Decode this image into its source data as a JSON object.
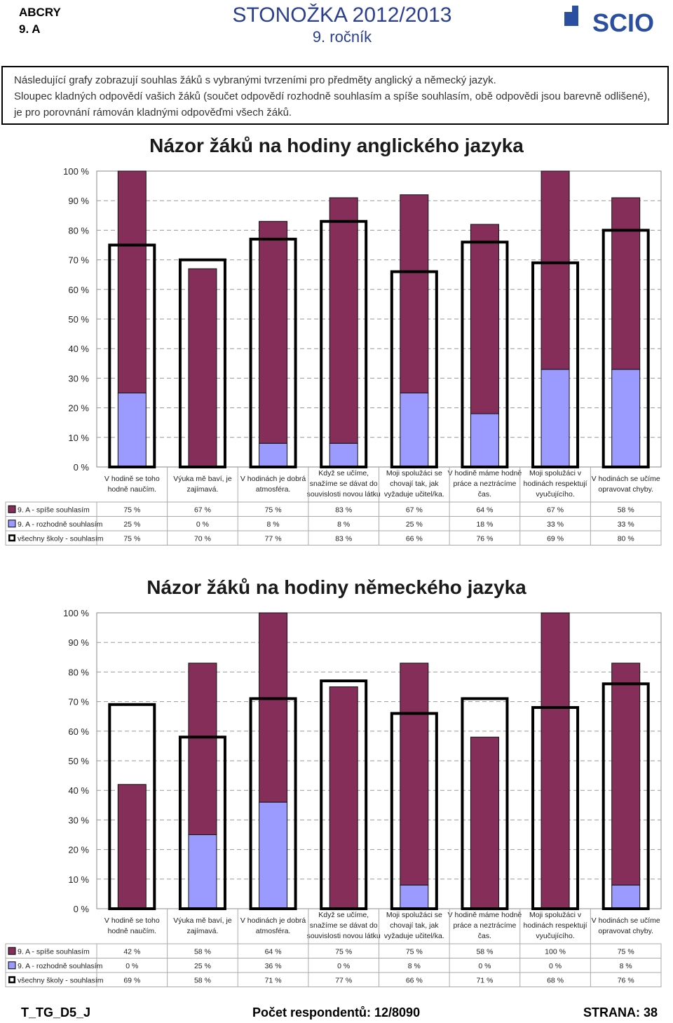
{
  "header": {
    "school": "ABCRY",
    "class": "9. A",
    "title": "STONOŽKA 2012/2013",
    "grade": "9. ročník",
    "logo_text": "SCIO"
  },
  "intro": {
    "line1": "Následující grafy zobrazují souhlas žáků s vybranými tvrzeními pro předměty anglický a německý jazyk.",
    "line2": "Sloupec kladných odpovědí vašich žáků (součet odpovědí rozhodně souhlasím a spíše souhlasím, obě odpovědi jsou barevně odlišené), je pro porovnání rámován kladnými odpověďmi všech žáků."
  },
  "colors": {
    "spise": "#862e5a",
    "rozhodne": "#9a9aff",
    "frame": "#000000"
  },
  "chart_data": [
    {
      "type": "bar",
      "title": "Názor žáků na hodiny anglického jazyka",
      "ylim": [
        0,
        100
      ],
      "yticks": [
        "0 %",
        "10 %",
        "20 %",
        "30 %",
        "40 %",
        "50 %",
        "60 %",
        "70 %",
        "80 %",
        "90 %",
        "100 %"
      ],
      "categories": [
        [
          "V hodině se toho",
          "hodně naučím."
        ],
        [
          "Výuka mě baví, je",
          "zajímavá."
        ],
        [
          "V hodinách je dobrá",
          "atmosféra."
        ],
        [
          "Když se učíme,",
          "snažíme se dávat do",
          "souvislosti novou látku"
        ],
        [
          "Moji spolužáci se",
          "chovají tak, jak",
          "vyžaduje učitel/ka."
        ],
        [
          "V hodině máme hodně",
          "práce a neztrácíme",
          "čas."
        ],
        [
          "Moji spolužáci v",
          "hodinách respektují",
          "vyučujícího."
        ],
        [
          "V hodinách se učíme",
          "opravovat chyby."
        ]
      ],
      "series": [
        {
          "name": "9. A - spíše souhlasím",
          "values": [
            75,
            67,
            75,
            83,
            67,
            64,
            67,
            58
          ],
          "labels": [
            "75 %",
            "67 %",
            "75 %",
            "83 %",
            "67 %",
            "64 %",
            "67 %",
            "58 %"
          ]
        },
        {
          "name": "9. A - rozhodně souhlasím",
          "values": [
            25,
            0,
            8,
            8,
            25,
            18,
            33,
            33
          ],
          "labels": [
            "25 %",
            "0 %",
            "8 %",
            "8 %",
            "25 %",
            "18 %",
            "33 %",
            "33 %"
          ]
        },
        {
          "name": "všechny školy - souhlasím",
          "values": [
            75,
            70,
            77,
            83,
            66,
            76,
            69,
            80
          ],
          "labels": [
            "75 %",
            "70 %",
            "77 %",
            "83 %",
            "66 %",
            "76 %",
            "69 %",
            "80 %"
          ]
        }
      ]
    },
    {
      "type": "bar",
      "title": "Názor žáků na hodiny německého jazyka",
      "ylim": [
        0,
        100
      ],
      "yticks": [
        "0 %",
        "10 %",
        "20 %",
        "30 %",
        "40 %",
        "50 %",
        "60 %",
        "70 %",
        "80 %",
        "90 %",
        "100 %"
      ],
      "categories": [
        [
          "V hodině se toho",
          "hodně naučím."
        ],
        [
          "Výuka mě baví, je",
          "zajímavá."
        ],
        [
          "V hodinách je dobrá",
          "atmosféra."
        ],
        [
          "Když se učíme,",
          "snažíme se dávat do",
          "souvislosti novou látku"
        ],
        [
          "Moji spolužáci se",
          "chovají tak, jak",
          "vyžaduje učitel/ka."
        ],
        [
          "V hodině máme hodně",
          "práce a neztrácíme",
          "čas."
        ],
        [
          "Moji spolužáci v",
          "hodinách respektují",
          "vyučujícího."
        ],
        [
          "V hodinách se učíme",
          "opravovat chyby."
        ]
      ],
      "series": [
        {
          "name": "9. A - spíše souhlasím",
          "values": [
            42,
            58,
            64,
            75,
            75,
            58,
            100,
            75
          ],
          "labels": [
            "42 %",
            "58 %",
            "64 %",
            "75 %",
            "75 %",
            "58 %",
            "100 %",
            "75 %"
          ]
        },
        {
          "name": "9. A - rozhodně souhlasím",
          "values": [
            0,
            25,
            36,
            0,
            8,
            0,
            0,
            8
          ],
          "labels": [
            "0 %",
            "25 %",
            "36 %",
            "0 %",
            "8 %",
            "0 %",
            "0 %",
            "8 %"
          ]
        },
        {
          "name": "všechny školy - souhlasím",
          "values": [
            69,
            58,
            71,
            77,
            66,
            71,
            68,
            76
          ],
          "labels": [
            "69 %",
            "58 %",
            "71 %",
            "77 %",
            "66 %",
            "71 %",
            "68 %",
            "76 %"
          ]
        }
      ]
    }
  ],
  "footer": {
    "code": "T_TG_D5_J",
    "respondents": "Počet respondentů: 12/8090",
    "page": "STRANA: 38"
  }
}
